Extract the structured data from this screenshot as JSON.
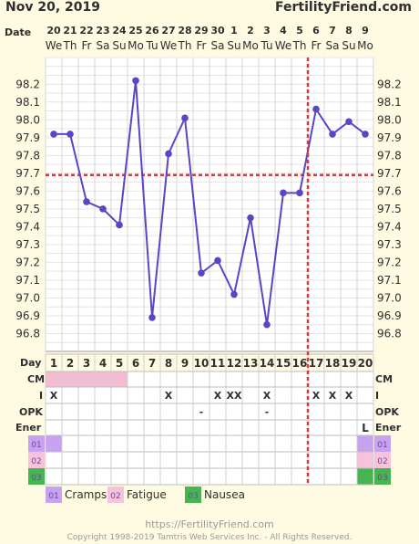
{
  "header": {
    "date": "Nov 20, 2019",
    "site": "FertilityFriend.com"
  },
  "labels": {
    "date_row": "Date",
    "day_row": "Day",
    "cm_row": "CM",
    "intercourse_row": "I",
    "opk_row": "OPK",
    "energy_row": "Ener",
    "code_01": "01",
    "code_02": "02",
    "code_03": "03"
  },
  "chart_data": {
    "type": "line",
    "title": "",
    "ylim": [
      96.7,
      98.35
    ],
    "yticks": [
      96.8,
      96.9,
      97.0,
      97.1,
      97.2,
      97.3,
      97.4,
      97.5,
      97.6,
      97.7,
      97.8,
      97.9,
      98.0,
      98.1,
      98.2
    ],
    "ytick_labels": [
      "96.8",
      "96.9",
      "97.0",
      "97.1",
      "97.2",
      "97.3",
      "97.4",
      "97.5",
      "97.6",
      "97.7",
      "97.8",
      "97.9",
      "98.0",
      "98.1",
      "98.2"
    ],
    "dates": [
      "20",
      "21",
      "22",
      "23",
      "24",
      "25",
      "26",
      "27",
      "28",
      "29",
      "30",
      "1",
      "2",
      "3",
      "4",
      "5",
      "6",
      "7",
      "8",
      "9"
    ],
    "weekdays": [
      "We",
      "Th",
      "Fr",
      "Sa",
      "Su",
      "Mo",
      "Tu",
      "We",
      "Th",
      "Fr",
      "Sa",
      "Su",
      "Mo",
      "Tu",
      "We",
      "Th",
      "Fr",
      "Sa",
      "Su",
      "Mo"
    ],
    "days": [
      1,
      2,
      3,
      4,
      5,
      6,
      7,
      8,
      9,
      10,
      11,
      12,
      13,
      14,
      15,
      16,
      17,
      18,
      19,
      20
    ],
    "temperatures": [
      97.92,
      97.92,
      97.54,
      97.5,
      97.41,
      98.22,
      96.89,
      97.81,
      98.01,
      97.14,
      97.21,
      97.02,
      97.45,
      96.85,
      97.59,
      97.59,
      98.06,
      97.92,
      97.99,
      97.92
    ],
    "coverline": 97.69,
    "ovulation_day": 16,
    "grid": true,
    "series_color": "#5a46c4",
    "coverline_color": "#d83a3a",
    "cervical_mucus": [
      "spotting",
      "spotting",
      "spotting",
      "spotting",
      "spotting",
      "",
      "",
      "",
      "",
      "",
      "",
      "",
      "",
      "",
      "",
      "",
      "",
      "",
      "",
      ""
    ],
    "intercourse": [
      "X",
      "",
      "",
      "",
      "",
      "",
      "",
      "X",
      "",
      "",
      "X",
      "XX",
      "",
      "X",
      "",
      "",
      "X",
      "X",
      "X",
      ""
    ],
    "opk": [
      "",
      "",
      "",
      "",
      "",
      "",
      "",
      "",
      "",
      "-",
      "",
      "",
      "",
      "-",
      "",
      "",
      "",
      "",
      "",
      ""
    ],
    "energy": [
      "",
      "",
      "",
      "",
      "",
      "",
      "",
      "",
      "",
      "",
      "",
      "",
      "",
      "",
      "",
      "",
      "",
      "",
      "",
      "L"
    ],
    "symptom_01": [
      true,
      false,
      false,
      false,
      false,
      false,
      false,
      false,
      false,
      false,
      false,
      false,
      false,
      false,
      false,
      false,
      false,
      false,
      false,
      false
    ],
    "symptom_02": [
      false,
      false,
      false,
      false,
      false,
      false,
      false,
      false,
      false,
      false,
      false,
      false,
      false,
      false,
      false,
      false,
      false,
      false,
      false,
      false
    ],
    "symptom_03": [
      false,
      false,
      false,
      false,
      false,
      false,
      false,
      false,
      false,
      false,
      false,
      false,
      false,
      false,
      false,
      false,
      false,
      false,
      false,
      false
    ],
    "cm_color": "#f2bcd2",
    "colors": {
      "code_01": "#c8a2f0",
      "code_02": "#f7c3dc",
      "code_03": "#45b64f"
    }
  },
  "legend": [
    {
      "code": "01",
      "label": "Cramps",
      "color": "#c8a2f0"
    },
    {
      "code": "02",
      "label": "Fatigue",
      "color": "#f7c3dc"
    },
    {
      "code": "03",
      "label": "Nausea",
      "color": "#45b64f"
    }
  ],
  "footer": {
    "url": "https://FertilityFriend.com",
    "copyright": "Copyright 1998-2019 Tamtris Web Services Inc. - All Rights Reserved."
  }
}
